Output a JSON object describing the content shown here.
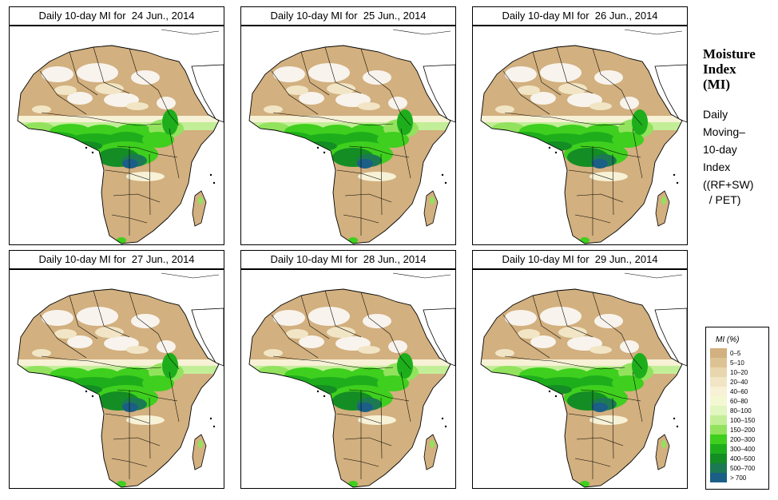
{
  "panels": [
    {
      "title": "Daily 10-day MI for  24 Jun., 2014"
    },
    {
      "title": "Daily 10-day MI for  25 Jun., 2014"
    },
    {
      "title": "Daily 10-day MI for  26 Jun., 2014"
    },
    {
      "title": "Daily 10-day MI for  27 Jun., 2014"
    },
    {
      "title": "Daily 10-day MI for  28 Jun., 2014"
    },
    {
      "title": "Daily 10-day MI for  29 Jun., 2014"
    }
  ],
  "side_panel": {
    "title_lines": [
      "Moisture",
      "Index",
      "(MI)"
    ],
    "desc_lines": [
      "Daily",
      "Moving–",
      "10-day",
      "Index"
    ],
    "formula_lines": [
      "((RF+SW)",
      "  / PET)"
    ]
  },
  "legend": {
    "title": "MI (%)",
    "items": [
      {
        "label": "0–5",
        "color": "#d2b07f"
      },
      {
        "label": "5–10",
        "color": "#ddc393"
      },
      {
        "label": "10–20",
        "color": "#e8d6ae"
      },
      {
        "label": "20–40",
        "color": "#f1e5c5"
      },
      {
        "label": "40–60",
        "color": "#f7f1d6"
      },
      {
        "label": "60–80",
        "color": "#f4f8d2"
      },
      {
        "label": "80–100",
        "color": "#e2f6c0"
      },
      {
        "label": "100–150",
        "color": "#c3ee98"
      },
      {
        "label": "150–200",
        "color": "#92e25e"
      },
      {
        "label": "200–300",
        "color": "#3fcf1e"
      },
      {
        "label": "300–400",
        "color": "#1eae1c"
      },
      {
        "label": "400–500",
        "color": "#148d24"
      },
      {
        "label": "500–700",
        "color": "#1c7a52"
      },
      {
        "label": "> 700",
        "color": "#1b5e86"
      }
    ]
  }
}
